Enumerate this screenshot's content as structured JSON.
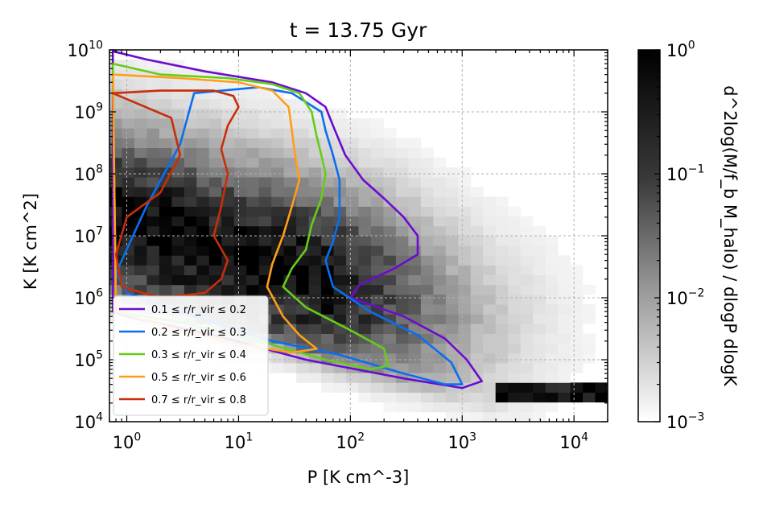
{
  "chart_data": {
    "type": "heatmap",
    "title": "t = 13.75 Gyr",
    "xlabel": "P [K cm^-3]",
    "ylabel": "K [K cm^2]",
    "colorbar_label": "d^2log(M/f_b M_halo) / dlogP dlogK",
    "x_scale": "log",
    "y_scale": "log",
    "xlim": [
      0.7,
      20000
    ],
    "ylim": [
      10000,
      10000000000
    ],
    "colorbar_range": [
      0.001,
      1
    ],
    "grid": true,
    "legend_position": "lower-left",
    "x_tick_labels": [
      {
        "value": 1,
        "base": "10",
        "exp": "0"
      },
      {
        "value": 10,
        "base": "10",
        "exp": "1"
      },
      {
        "value": 100,
        "base": "10",
        "exp": "2"
      },
      {
        "value": 1000,
        "base": "10",
        "exp": "3"
      },
      {
        "value": 10000,
        "base": "10",
        "exp": "4"
      }
    ],
    "y_tick_labels": [
      {
        "value": 10000,
        "base": "10",
        "exp": "4"
      },
      {
        "value": 100000,
        "base": "10",
        "exp": "5"
      },
      {
        "value": 1000000,
        "base": "10",
        "exp": "6"
      },
      {
        "value": 10000000,
        "base": "10",
        "exp": "7"
      },
      {
        "value": 100000000,
        "base": "10",
        "exp": "8"
      },
      {
        "value": 1000000000,
        "base": "10",
        "exp": "9"
      },
      {
        "value": 10000000000,
        "base": "10",
        "exp": "10"
      }
    ],
    "colorbar_tick_labels": [
      {
        "value": 1,
        "base": "10",
        "exp": "0"
      },
      {
        "value": 0.1,
        "base": "10",
        "exp": "−1"
      },
      {
        "value": 0.01,
        "base": "10",
        "exp": "−2"
      },
      {
        "value": 0.001,
        "base": "10",
        "exp": "−3"
      }
    ],
    "series": [
      {
        "name": "0.1 ≤ r/r_vir ≤ 0.2",
        "color": "#6a0dce",
        "contour": [
          [
            0.75,
            9500000000.0
          ],
          [
            1.5,
            7000000000.0
          ],
          [
            5,
            4500000000.0
          ],
          [
            20,
            3000000000.0
          ],
          [
            40,
            2000000000.0
          ],
          [
            60,
            1200000000.0
          ],
          [
            70,
            600000000.0
          ],
          [
            90,
            200000000.0
          ],
          [
            130,
            80000000.0
          ],
          [
            200,
            40000000.0
          ],
          [
            300,
            20000000.0
          ],
          [
            400,
            10000000.0
          ],
          [
            400,
            5000000.0
          ],
          [
            250,
            3000000.0
          ],
          [
            120,
            1600000.0
          ],
          [
            100,
            1000000.0
          ],
          [
            300,
            500000.0
          ],
          [
            700,
            220000.0
          ],
          [
            1100,
            100000.0
          ],
          [
            1500,
            45000.0
          ],
          [
            1000,
            35000.0
          ],
          [
            300,
            50000.0
          ],
          [
            40,
            100000.0
          ],
          [
            6,
            250000.0
          ],
          [
            1,
            500000.0
          ],
          [
            0.75,
            600000.0
          ]
        ]
      },
      {
        "name": "0.2 ≤ r/r_vir ≤ 0.3",
        "color": "#0a6ef0",
        "contour": [
          [
            4,
            2000000000.0
          ],
          [
            15,
            2500000000.0
          ],
          [
            30,
            2000000000.0
          ],
          [
            55,
            1000000000.0
          ],
          [
            60,
            500000000.0
          ],
          [
            70,
            200000000.0
          ],
          [
            80,
            80000000.0
          ],
          [
            80,
            20000000.0
          ],
          [
            70,
            8000000.0
          ],
          [
            60,
            4000000.0
          ],
          [
            70,
            1500000.0
          ],
          [
            150,
            600000.0
          ],
          [
            400,
            250000.0
          ],
          [
            800,
            90000.0
          ],
          [
            1000,
            40000.0
          ],
          [
            700,
            40000.0
          ],
          [
            300,
            60000.0
          ],
          [
            80,
            120000.0
          ],
          [
            20,
            200000.0
          ],
          [
            4,
            500000.0
          ],
          [
            1,
            1200000.0
          ],
          [
            0.8,
            2500000.0
          ],
          [
            1.5,
            30000000.0
          ],
          [
            3,
            300000000.0
          ]
        ]
      },
      {
        "name": "0.3 ≤ r/r_vir ≤ 0.4",
        "color": "#66cc1a",
        "contour": [
          [
            0.75,
            6000000000.0
          ],
          [
            2,
            4000000000.0
          ],
          [
            8,
            3500000000.0
          ],
          [
            20,
            2800000000.0
          ],
          [
            35,
            2000000000.0
          ],
          [
            45,
            1000000000.0
          ],
          [
            50,
            400000000.0
          ],
          [
            55,
            200000000.0
          ],
          [
            60,
            100000000.0
          ],
          [
            55,
            40000000.0
          ],
          [
            45,
            15000000.0
          ],
          [
            40,
            6000000.0
          ],
          [
            30,
            3000000.0
          ],
          [
            25,
            1500000.0
          ],
          [
            40,
            700000.0
          ],
          [
            100,
            300000.0
          ],
          [
            200,
            150000.0
          ],
          [
            220,
            80000.0
          ],
          [
            150,
            70000.0
          ],
          [
            60,
            100000.0
          ],
          [
            15,
            200000.0
          ],
          [
            3,
            400000.0
          ],
          [
            0.8,
            600000.0
          ]
        ]
      },
      {
        "name": "0.5 ≤ r/r_vir ≤ 0.6",
        "color": "#ff9e1a",
        "contour": [
          [
            0.75,
            4000000000.0
          ],
          [
            3,
            3500000000.0
          ],
          [
            10,
            3000000000.0
          ],
          [
            20,
            2200000000.0
          ],
          [
            28,
            1200000000.0
          ],
          [
            30,
            500000000.0
          ],
          [
            32,
            200000000.0
          ],
          [
            35,
            80000000.0
          ],
          [
            30,
            30000000.0
          ],
          [
            25,
            10000000.0
          ],
          [
            20,
            3500000.0
          ],
          [
            18,
            1500000.0
          ],
          [
            25,
            500000.0
          ],
          [
            35,
            250000.0
          ],
          [
            50,
            150000.0
          ],
          [
            30,
            130000.0
          ],
          [
            10,
            180000.0
          ],
          [
            3,
            300000.0
          ],
          [
            0.8,
            600000.0
          ]
        ]
      },
      {
        "name": "0.7 ≤ r/r_vir ≤ 0.8",
        "color": "#c82e0a",
        "contour": [
          [
            0.75,
            2000000000.0
          ],
          [
            2,
            2200000000.0
          ],
          [
            6,
            2200000000.0
          ],
          [
            9,
            1800000000.0
          ],
          [
            10,
            1200000000.0
          ],
          [
            8,
            600000000.0
          ],
          [
            7,
            250000000.0
          ],
          [
            8,
            100000000.0
          ],
          [
            7,
            30000000.0
          ],
          [
            6,
            10000000.0
          ],
          [
            8,
            4000000.0
          ],
          [
            7,
            2000000.0
          ],
          [
            5,
            1200000.0
          ],
          [
            2,
            1000000.0
          ],
          [
            0.9,
            1500000.0
          ],
          [
            0.8,
            5000000.0
          ],
          [
            1,
            20000000.0
          ],
          [
            2,
            50000000.0
          ],
          [
            3,
            200000000.0
          ],
          [
            2.5,
            800000000.0
          ]
        ]
      }
    ]
  }
}
